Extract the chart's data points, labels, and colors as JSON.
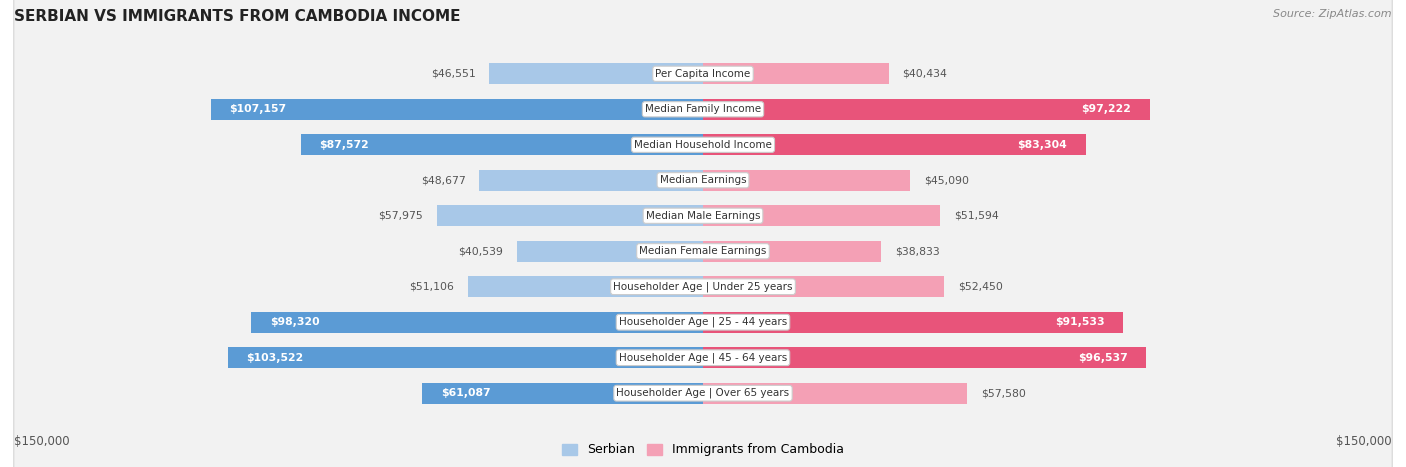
{
  "title": "SERBIAN VS IMMIGRANTS FROM CAMBODIA INCOME",
  "source": "Source: ZipAtlas.com",
  "categories": [
    "Per Capita Income",
    "Median Family Income",
    "Median Household Income",
    "Median Earnings",
    "Median Male Earnings",
    "Median Female Earnings",
    "Householder Age | Under 25 years",
    "Householder Age | 25 - 44 years",
    "Householder Age | 45 - 64 years",
    "Householder Age | Over 65 years"
  ],
  "serbian_values": [
    46551,
    107157,
    87572,
    48677,
    57975,
    40539,
    51106,
    98320,
    103522,
    61087
  ],
  "cambodia_values": [
    40434,
    97222,
    83304,
    45090,
    51594,
    38833,
    52450,
    91533,
    96537,
    57580
  ],
  "serbian_labels": [
    "$46,551",
    "$107,157",
    "$87,572",
    "$48,677",
    "$57,975",
    "$40,539",
    "$51,106",
    "$98,320",
    "$103,522",
    "$61,087"
  ],
  "cambodia_labels": [
    "$40,434",
    "$97,222",
    "$83,304",
    "$45,090",
    "$51,594",
    "$38,833",
    "$52,450",
    "$91,533",
    "$96,537",
    "$57,580"
  ],
  "serbian_color_light": "#a8c8e8",
  "serbian_color_dark": "#5b9bd5",
  "cambodia_color_light": "#f4a0b5",
  "cambodia_color_dark": "#e8547a",
  "inside_threshold": 60000,
  "max_value": 150000,
  "row_bg_color": "#f2f2f2",
  "label_box_color": "#ffffff",
  "label_box_edge": "#cccccc",
  "background_color": "#ffffff",
  "legend_serbian": "Serbian",
  "legend_cambodia": "Immigrants from Cambodia",
  "x_tick_left": "$150,000",
  "x_tick_right": "$150,000",
  "label_fontsize": 7.8,
  "cat_fontsize": 7.5,
  "title_fontsize": 11
}
